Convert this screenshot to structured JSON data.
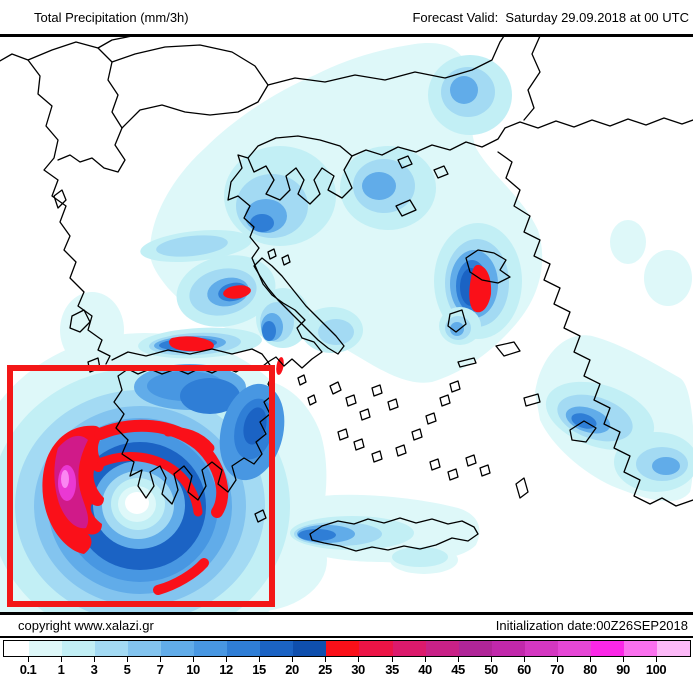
{
  "header": {
    "product": "Total Precipitation (mm/3h)",
    "valid": "Forecast Valid:  Saturday 29.09.2018 at 00 UTC"
  },
  "footer": {
    "copyright": "copyright www.xalazi.gr",
    "initialization": "Initialization date:00Z26SEP2018"
  },
  "legend": {
    "unit": "mm/3h",
    "tick_values": [
      "0.1",
      "1",
      "3",
      "5",
      "7",
      "10",
      "12",
      "15",
      "20",
      "25",
      "30",
      "35",
      "40",
      "45",
      "50",
      "60",
      "70",
      "80",
      "90",
      "100"
    ],
    "segment_colors": [
      "#ffffff",
      "#def8f9",
      "#c2eff5",
      "#a3daf3",
      "#83c4ef",
      "#61ace9",
      "#4897e2",
      "#2f7ed6",
      "#1b63c4",
      "#0f4fae",
      "#fa1019",
      "#ec1446",
      "#dc1a6c",
      "#c92187",
      "#b02598",
      "#c128ab",
      "#d437c1",
      "#e647d6",
      "#fb27e7",
      "#fa70ee",
      "#fcb9f7"
    ]
  },
  "map": {
    "coast_color": "#000000",
    "land_color": "#ffffff",
    "highlight_box_color": "#f31717",
    "heavy_rain_color": "#fa1019"
  }
}
